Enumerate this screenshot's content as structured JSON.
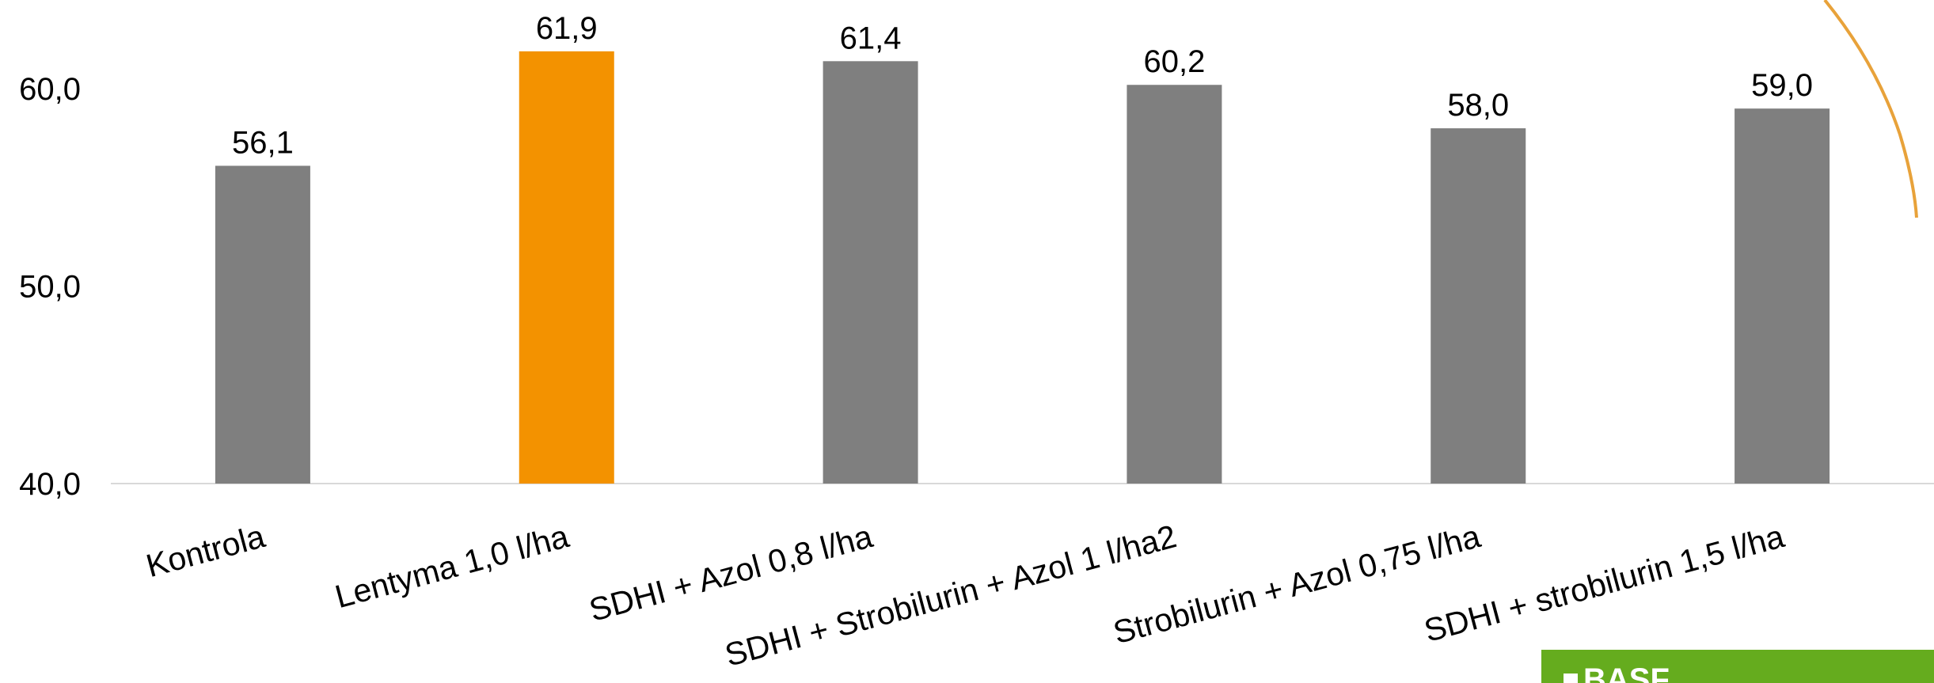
{
  "chart_data": {
    "type": "bar",
    "categories": [
      "Kontrola",
      "Lentyma 1,0 l/ha",
      "SDHI + Azol 0,8 l/ha",
      "SDHI + Strobilurin + Azol 1 l/ha2",
      "Strobilurin + Azol 0,75 l/ha",
      "SDHI + strobilurin 1,5 l/ha"
    ],
    "values": [
      56.1,
      61.9,
      61.4,
      60.2,
      58.0,
      59.0
    ],
    "value_labels": [
      "56,1",
      "61,9",
      "61,4",
      "60,2",
      "58,0",
      "59,0"
    ],
    "colors": [
      "#7f7f7f",
      "#f39200",
      "#7f7f7f",
      "#7f7f7f",
      "#7f7f7f",
      "#7f7f7f"
    ],
    "ylim": [
      40,
      64.5
    ],
    "yticks": [
      {
        "value": 40,
        "label": "40,0"
      },
      {
        "value": 50,
        "label": "50,0"
      },
      {
        "value": 60,
        "label": "60,0"
      }
    ],
    "grid": false
  },
  "logo": "BASF"
}
